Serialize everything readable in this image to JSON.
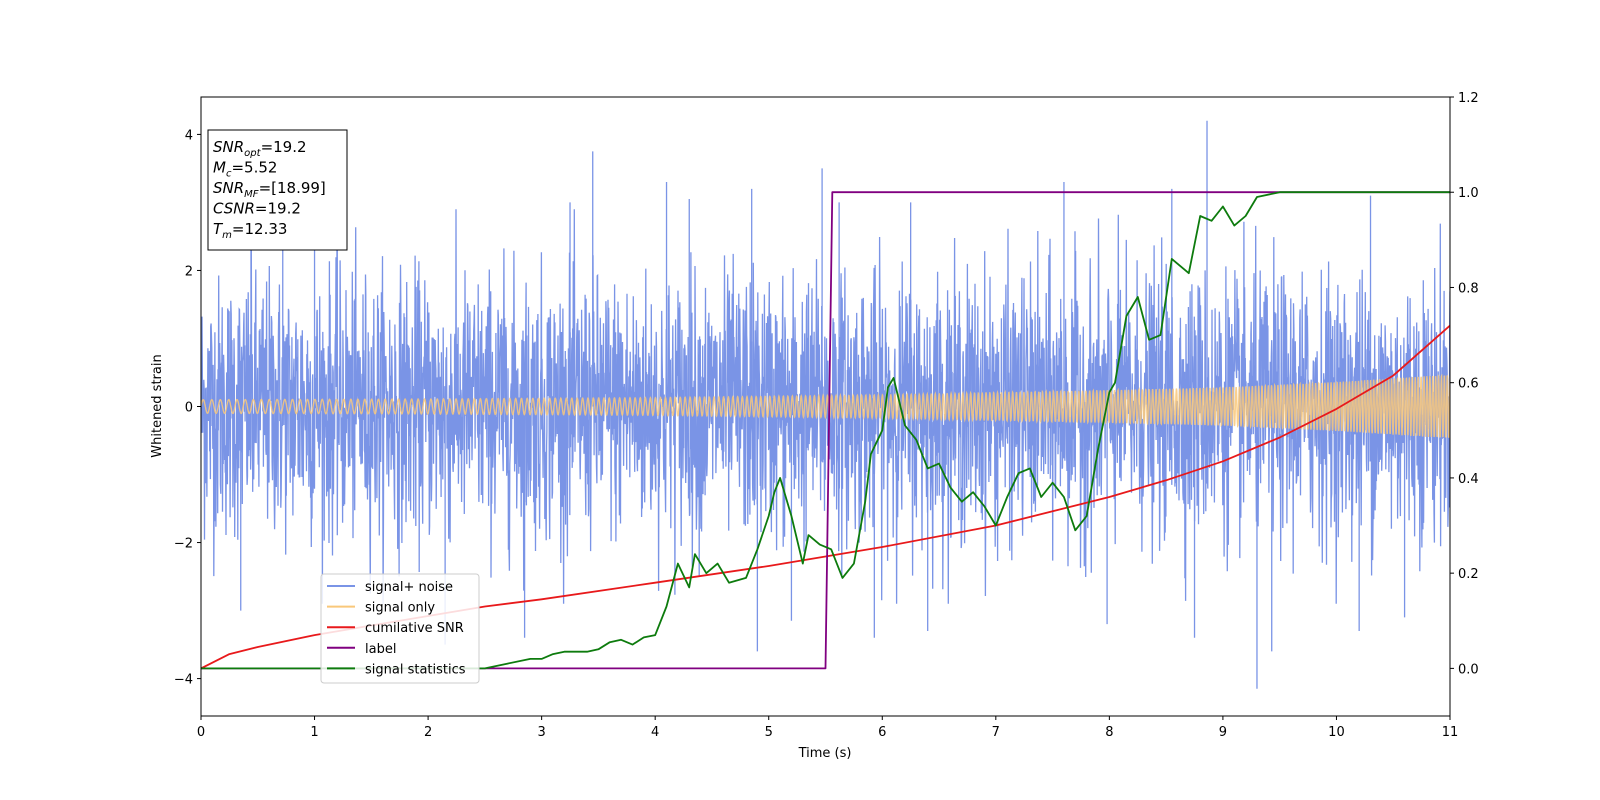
{
  "chart_data": {
    "type": "line",
    "title": "",
    "xlabel": "Time (s)",
    "ylabel": "Whitened strain",
    "y2label": "",
    "xlim": [
      0,
      11
    ],
    "ylim": [
      -4.55,
      4.55
    ],
    "y2lim": [
      -0.1,
      1.2
    ],
    "xticks": [
      "0",
      "1",
      "2",
      "3",
      "4",
      "5",
      "6",
      "7",
      "8",
      "9",
      "10",
      "11"
    ],
    "yticks": [
      "−4",
      "−2",
      "0",
      "2",
      "4"
    ],
    "y2ticks": [
      "0.0",
      "0.2",
      "0.4",
      "0.6",
      "0.8",
      "1.0",
      "1.2"
    ],
    "grid": false,
    "legend_placement": "lower-left",
    "annotation": {
      "lines": [
        {
          "base": "SNR",
          "sub": "opt",
          "rest": "=19.2"
        },
        {
          "base": "M",
          "sub": "c",
          "rest": "=5.52"
        },
        {
          "base": "SNR",
          "sub": "MF",
          "rest": "=[18.99]"
        },
        {
          "base": "CSNR",
          "sub": "",
          "rest": "=19.2"
        },
        {
          "base": "T",
          "sub": "m",
          "rest": "=12.33"
        }
      ]
    },
    "series": [
      {
        "name": "signal+ noise",
        "color": "#7a94e6",
        "axis": "left",
        "kind": "noise",
        "amplitude_std": 1.0,
        "peaks": [
          {
            "x": 0.44,
            "y": 2.35
          },
          {
            "x": 0.72,
            "y": 2.5
          },
          {
            "x": 1.0,
            "y": 2.5
          },
          {
            "x": 1.2,
            "y": 2.6
          },
          {
            "x": 3.45,
            "y": 3.75
          },
          {
            "x": 3.25,
            "y": 3.0
          },
          {
            "x": 4.1,
            "y": 3.3
          },
          {
            "x": 4.3,
            "y": 3.05
          },
          {
            "x": 4.85,
            "y": 3.2
          },
          {
            "x": 5.47,
            "y": 3.5
          },
          {
            "x": 5.62,
            "y": 3.0
          },
          {
            "x": 6.25,
            "y": 3.0
          },
          {
            "x": 7.6,
            "y": 3.3
          },
          {
            "x": 8.55,
            "y": 3.2
          },
          {
            "x": 8.86,
            "y": 4.2
          },
          {
            "x": 10.3,
            "y": 3.1
          },
          {
            "x": 0.35,
            "y": -3.0
          },
          {
            "x": 2.15,
            "y": -3.5
          },
          {
            "x": 2.85,
            "y": -3.4
          },
          {
            "x": 4.9,
            "y": -3.6
          },
          {
            "x": 5.2,
            "y": -3.15
          },
          {
            "x": 5.93,
            "y": -3.4
          },
          {
            "x": 6.4,
            "y": -3.3
          },
          {
            "x": 7.98,
            "y": -3.2
          },
          {
            "x": 8.75,
            "y": -3.4
          },
          {
            "x": 9.3,
            "y": -4.15
          },
          {
            "x": 9.43,
            "y": -3.6
          },
          {
            "x": 10.2,
            "y": -3.3
          },
          {
            "x": 10.6,
            "y": -3.1
          }
        ]
      },
      {
        "name": "signal only",
        "color": "#f9c87a",
        "axis": "left",
        "kind": "chirp",
        "envelope": [
          [
            0,
            0.1
          ],
          [
            2,
            0.11
          ],
          [
            4,
            0.13
          ],
          [
            6,
            0.17
          ],
          [
            8,
            0.24
          ],
          [
            9,
            0.28
          ],
          [
            10,
            0.36
          ],
          [
            11,
            0.47
          ]
        ]
      },
      {
        "name": "cumilative SNR",
        "color": "#e8191b",
        "axis": "right",
        "points": [
          [
            0,
            0.0
          ],
          [
            0.25,
            0.03
          ],
          [
            0.5,
            0.045
          ],
          [
            1,
            0.07
          ],
          [
            1.5,
            0.09
          ],
          [
            2,
            0.11
          ],
          [
            2.5,
            0.13
          ],
          [
            3,
            0.145
          ],
          [
            4,
            0.18
          ],
          [
            5,
            0.215
          ],
          [
            6,
            0.255
          ],
          [
            7,
            0.3
          ],
          [
            8,
            0.36
          ],
          [
            8.5,
            0.395
          ],
          [
            9,
            0.435
          ],
          [
            9.5,
            0.485
          ],
          [
            10,
            0.545
          ],
          [
            10.5,
            0.615
          ],
          [
            11,
            0.72
          ]
        ]
      },
      {
        "name": "label",
        "color": "#800080",
        "axis": "right",
        "points": [
          [
            0,
            0.0
          ],
          [
            5.5,
            0.0
          ],
          [
            5.56,
            1.0
          ],
          [
            11,
            1.0
          ]
        ]
      },
      {
        "name": "signal statistics",
        "color": "#0d7b0d",
        "axis": "right",
        "points": [
          [
            0,
            0.0
          ],
          [
            0.5,
            0.0
          ],
          [
            1,
            0.0
          ],
          [
            1.5,
            0.0
          ],
          [
            2,
            0.0
          ],
          [
            2.3,
            0.0
          ],
          [
            2.5,
            0.0
          ],
          [
            2.7,
            0.01
          ],
          [
            2.9,
            0.02
          ],
          [
            3.0,
            0.02
          ],
          [
            3.1,
            0.03
          ],
          [
            3.2,
            0.035
          ],
          [
            3.4,
            0.035
          ],
          [
            3.5,
            0.04
          ],
          [
            3.6,
            0.055
          ],
          [
            3.7,
            0.06
          ],
          [
            3.8,
            0.05
          ],
          [
            3.9,
            0.065
          ],
          [
            4.0,
            0.07
          ],
          [
            4.1,
            0.13
          ],
          [
            4.2,
            0.22
          ],
          [
            4.3,
            0.17
          ],
          [
            4.35,
            0.24
          ],
          [
            4.45,
            0.2
          ],
          [
            4.55,
            0.22
          ],
          [
            4.65,
            0.18
          ],
          [
            4.8,
            0.19
          ],
          [
            4.9,
            0.25
          ],
          [
            5.0,
            0.32
          ],
          [
            5.05,
            0.37
          ],
          [
            5.1,
            0.4
          ],
          [
            5.2,
            0.32
          ],
          [
            5.3,
            0.22
          ],
          [
            5.35,
            0.28
          ],
          [
            5.45,
            0.26
          ],
          [
            5.55,
            0.25
          ],
          [
            5.65,
            0.19
          ],
          [
            5.75,
            0.22
          ],
          [
            5.85,
            0.35
          ],
          [
            5.9,
            0.45
          ],
          [
            6.0,
            0.5
          ],
          [
            6.05,
            0.59
          ],
          [
            6.1,
            0.61
          ],
          [
            6.2,
            0.51
          ],
          [
            6.3,
            0.48
          ],
          [
            6.4,
            0.42
          ],
          [
            6.5,
            0.43
          ],
          [
            6.6,
            0.38
          ],
          [
            6.7,
            0.35
          ],
          [
            6.8,
            0.37
          ],
          [
            6.9,
            0.34
          ],
          [
            7.0,
            0.3
          ],
          [
            7.1,
            0.36
          ],
          [
            7.2,
            0.41
          ],
          [
            7.3,
            0.42
          ],
          [
            7.4,
            0.36
          ],
          [
            7.5,
            0.39
          ],
          [
            7.6,
            0.36
          ],
          [
            7.7,
            0.29
          ],
          [
            7.8,
            0.32
          ],
          [
            7.9,
            0.46
          ],
          [
            8.0,
            0.58
          ],
          [
            8.05,
            0.6
          ],
          [
            8.15,
            0.74
          ],
          [
            8.25,
            0.78
          ],
          [
            8.35,
            0.69
          ],
          [
            8.45,
            0.7
          ],
          [
            8.55,
            0.86
          ],
          [
            8.7,
            0.83
          ],
          [
            8.8,
            0.95
          ],
          [
            8.9,
            0.94
          ],
          [
            9.0,
            0.97
          ],
          [
            9.1,
            0.93
          ],
          [
            9.2,
            0.95
          ],
          [
            9.3,
            0.99
          ],
          [
            9.5,
            1.0
          ],
          [
            10.0,
            1.0
          ],
          [
            11,
            1.0
          ]
        ]
      }
    ]
  }
}
